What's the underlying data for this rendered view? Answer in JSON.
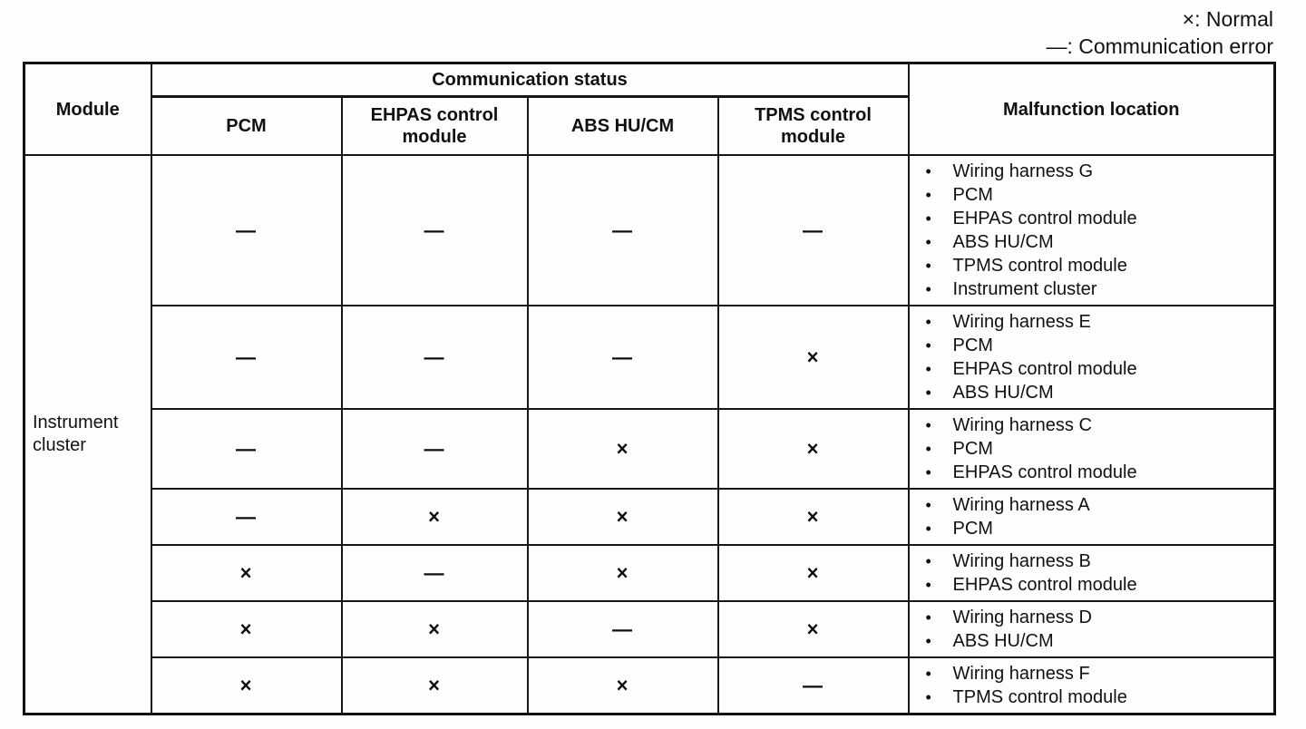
{
  "legend": {
    "normal": "×: Normal",
    "error": "—: Communication error"
  },
  "table": {
    "headers": {
      "module": "Module",
      "communication_status": "Communication status",
      "columns": [
        "PCM",
        "EHPAS control module",
        "ABS HU/CM",
        "TPMS control module"
      ],
      "malfunction_location": "Malfunction location"
    },
    "module_name": "Instrument cluster",
    "rows": [
      {
        "statuses": [
          "—",
          "—",
          "—",
          "—"
        ],
        "malfunction_locations": [
          "Wiring harness G",
          "PCM",
          "EHPAS control module",
          "ABS HU/CM",
          "TPMS control module",
          "Instrument cluster"
        ]
      },
      {
        "statuses": [
          "—",
          "—",
          "—",
          "×"
        ],
        "malfunction_locations": [
          "Wiring harness E",
          "PCM",
          "EHPAS control module",
          "ABS HU/CM"
        ]
      },
      {
        "statuses": [
          "—",
          "—",
          "×",
          "×"
        ],
        "malfunction_locations": [
          "Wiring harness C",
          "PCM",
          "EHPAS control module"
        ]
      },
      {
        "statuses": [
          "—",
          "×",
          "×",
          "×"
        ],
        "malfunction_locations": [
          "Wiring harness A",
          "PCM"
        ]
      },
      {
        "statuses": [
          "×",
          "—",
          "×",
          "×"
        ],
        "malfunction_locations": [
          "Wiring harness B",
          "EHPAS control module"
        ]
      },
      {
        "statuses": [
          "×",
          "×",
          "—",
          "×"
        ],
        "malfunction_locations": [
          "Wiring harness D",
          "ABS HU/CM"
        ]
      },
      {
        "statuses": [
          "×",
          "×",
          "×",
          "—"
        ],
        "malfunction_locations": [
          "Wiring harness F",
          "TPMS control module"
        ]
      }
    ]
  }
}
